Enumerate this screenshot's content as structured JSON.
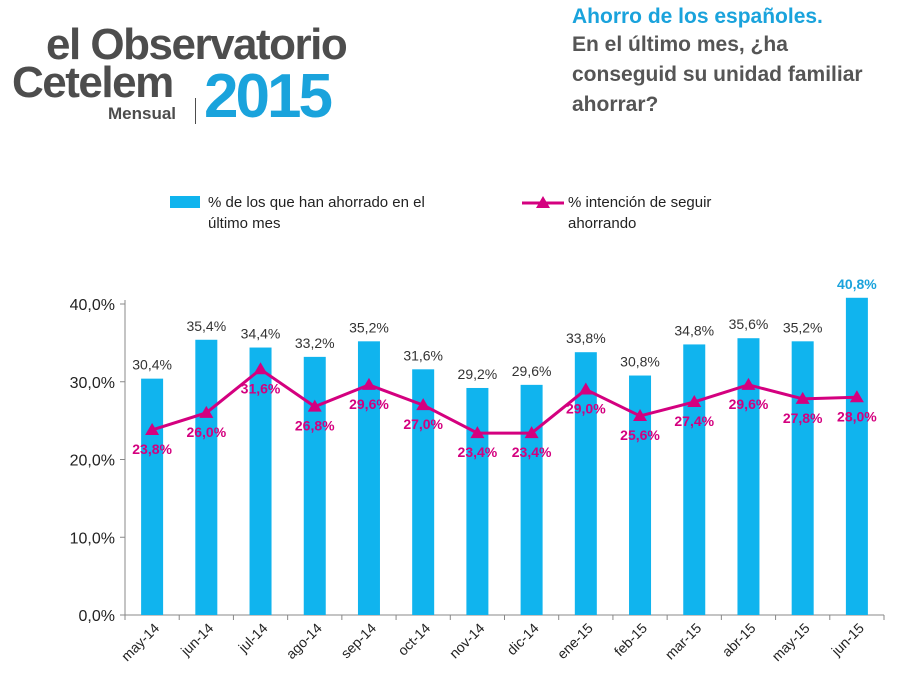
{
  "logo": {
    "line1": "el Observatorio",
    "line2": "Cetelem",
    "sub": "Mensual",
    "year": "2015"
  },
  "heading": {
    "title": "Ahorro de los españoles.",
    "question": "En el último mes, ¿ha conseguid su unidad familiar ahorrar?"
  },
  "colors": {
    "bar": "#10b4ee",
    "line": "#d4007f",
    "highlight": "#1aa3dc"
  },
  "chart_data": {
    "type": "bar",
    "categories": [
      "may-14",
      "jun-14",
      "jul-14",
      "ago-14",
      "sep-14",
      "oct-14",
      "nov-14",
      "dic-14",
      "ene-15",
      "feb-15",
      "mar-15",
      "abr-15",
      "may-15",
      "jun-15"
    ],
    "series": [
      {
        "name": "% de los que han ahorrado en el último mes",
        "kind": "bar",
        "values": [
          30.4,
          35.4,
          34.4,
          33.2,
          35.2,
          31.6,
          29.2,
          29.6,
          33.8,
          30.8,
          34.8,
          35.6,
          35.2,
          40.8
        ],
        "labels": [
          "30,4%",
          "35,4%",
          "34,4%",
          "33,2%",
          "35,2%",
          "31,6%",
          "29,2%",
          "29,6%",
          "33,8%",
          "30,8%",
          "34,8%",
          "35,6%",
          "35,2%",
          "40,8%"
        ]
      },
      {
        "name": "% intención de seguir ahorrando",
        "kind": "line",
        "values": [
          23.8,
          26.0,
          31.6,
          26.8,
          29.6,
          27.0,
          23.4,
          23.4,
          29.0,
          25.6,
          27.4,
          29.6,
          27.8,
          28.0
        ],
        "labels": [
          "23,8%",
          "26,0%",
          "31,6%",
          "26,8%",
          "29,6%",
          "27,0%",
          "23,4%",
          "23,4%",
          "29,0%",
          "25,6%",
          "27,4%",
          "29,6%",
          "27,8%",
          "28,0%"
        ]
      }
    ],
    "legend": [
      "% de los que han ahorrado en el último mes",
      "% intención de seguir ahorrando"
    ],
    "yticks": [
      0,
      10,
      20,
      30,
      40
    ],
    "ytick_labels": [
      "0,0%",
      "10,0%",
      "20,0%",
      "30,0%",
      "40,0%"
    ],
    "ylim": [
      0,
      40
    ],
    "grid": false,
    "legend_position": "top"
  }
}
